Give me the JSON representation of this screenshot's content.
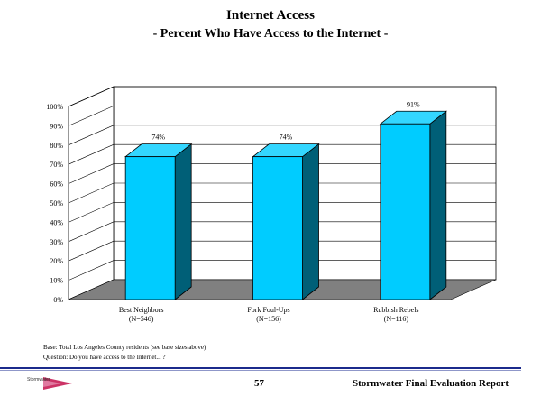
{
  "chart_data": {
    "type": "bar",
    "title": "Internet Access",
    "subtitle": "- Percent Who Have Access to the Internet -",
    "categories": [
      "Best Neighbors",
      "Fork Foul-Ups",
      "Rubbish Rebels"
    ],
    "category_sizes": [
      "(N=546)",
      "(N=156)",
      "(N=116)"
    ],
    "values": [
      74,
      74,
      91
    ],
    "value_labels": [
      "74%",
      "74%",
      "91%"
    ],
    "ylim": [
      0,
      100
    ],
    "yticks": [
      "0%",
      "10%",
      "20%",
      "30%",
      "40%",
      "50%",
      "60%",
      "70%",
      "80%",
      "90%",
      "100%"
    ],
    "grid": true,
    "colors": {
      "bar_front": "#00ccff",
      "bar_side": "#005f77",
      "bar_top": "#33d6ff",
      "floor": "#808080"
    }
  },
  "footnotes": {
    "base": "Base: Total Los Angeles County residents (see base sizes above)",
    "question": "Question: Do you have access to the Internet... ?"
  },
  "footer": {
    "page_number": "57",
    "report_title": "Stormwater Final Evaluation Report",
    "logo_text": "Stormwater"
  }
}
